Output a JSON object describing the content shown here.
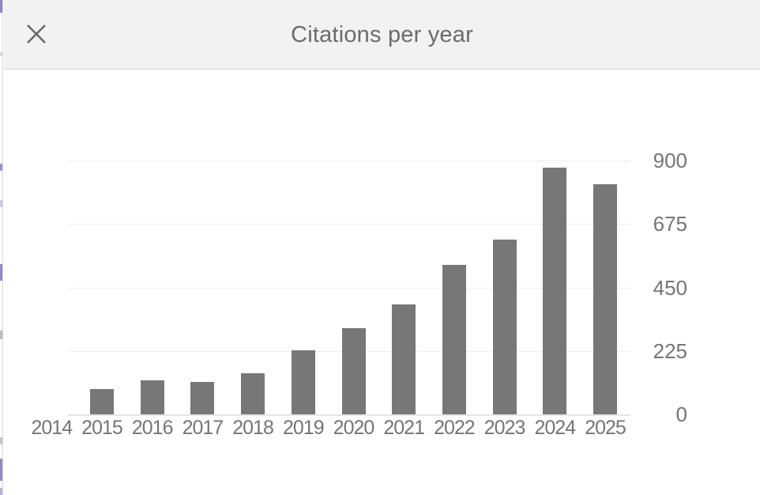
{
  "modal": {
    "title": "Citations per year",
    "close_icon": "x-close"
  },
  "chart_data": {
    "type": "bar",
    "title": "Citations per year",
    "categories": [
      "2015",
      "2016",
      "2017",
      "2018",
      "2019",
      "2020",
      "2021",
      "2022",
      "2023",
      "2024",
      "2025"
    ],
    "values": [
      90,
      120,
      115,
      145,
      228,
      305,
      390,
      530,
      620,
      875,
      815
    ],
    "clipped_left_category": "2014",
    "xlabel": "",
    "ylabel": "",
    "yticks": [
      0,
      225,
      450,
      675,
      900
    ],
    "ylim": [
      0,
      900
    ],
    "grid": true,
    "y_axis_side": "right",
    "bar_color": "#777777",
    "gridline_color": "#eeeeee",
    "axis_text_color": "#757575"
  },
  "header_colors": {
    "background": "#f2f2f2",
    "border": "#d9d9d9",
    "text": "#6b6b6b"
  },
  "edge_artifacts": [
    {
      "y": 0,
      "h": 16,
      "color": "#8c86d8"
    },
    {
      "y": 66,
      "h": 5,
      "color": "#d9d6f1"
    },
    {
      "y": 207,
      "h": 9,
      "color": "#9a92dc"
    },
    {
      "y": 253,
      "h": 9,
      "color": "#cac7e9"
    },
    {
      "y": 334,
      "h": 21,
      "color": "#8f87d7"
    },
    {
      "y": 418,
      "h": 11,
      "color": "#bdbdbd"
    },
    {
      "y": 553,
      "h": 9,
      "color": "#c4c4c4"
    },
    {
      "y": 580,
      "h": 28,
      "color": "#8c89d1"
    },
    {
      "y": 617,
      "h": 9,
      "color": "#b5aee6"
    }
  ]
}
